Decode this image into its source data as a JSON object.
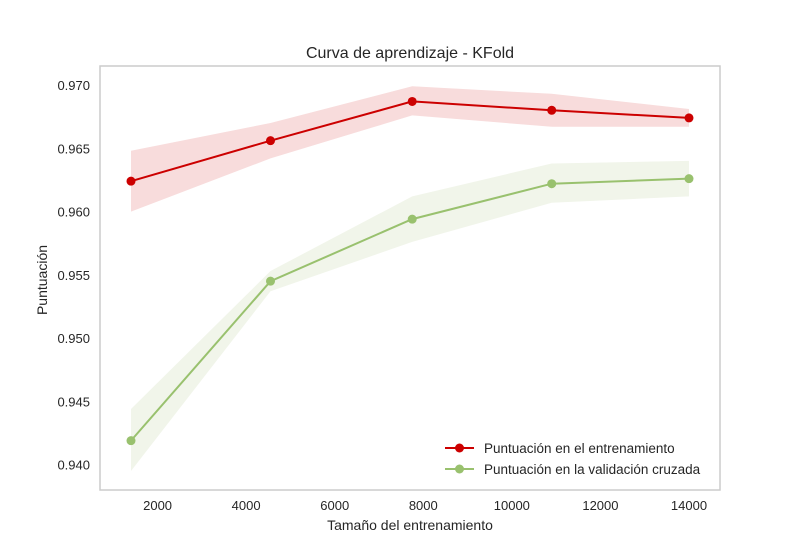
{
  "chart_data": {
    "type": "line",
    "title": "Curva de aprendizaje - KFold",
    "xlabel": "Tamaño del entrenamiento",
    "ylabel": "Puntuación",
    "xlim": [
      700,
      14700
    ],
    "ylim": [
      0.938,
      0.9715
    ],
    "xticks": [
      2000,
      4000,
      6000,
      8000,
      10000,
      12000,
      14000
    ],
    "yticks": [
      0.94,
      0.945,
      0.95,
      0.955,
      0.96,
      0.965,
      0.97
    ],
    "grid": false,
    "legend_position": "lower-right",
    "x": [
      1400,
      4550,
      7750,
      10900,
      14000
    ],
    "series": [
      {
        "name": "Puntuación en el entrenamiento",
        "color": "#cc0000",
        "band_color": "#f8dcdc",
        "values": [
          0.9624,
          0.9656,
          0.9687,
          0.968,
          0.9674
        ],
        "lower": [
          0.96,
          0.9642,
          0.9676,
          0.9667,
          0.9667
        ],
        "upper": [
          0.9648,
          0.967,
          0.9699,
          0.9693,
          0.9681
        ]
      },
      {
        "name": "Puntuación en la validación cruzada",
        "color": "#99c16e",
        "band_color": "#f1f5ea",
        "values": [
          0.9419,
          0.9545,
          0.9594,
          0.9622,
          0.9626
        ],
        "lower": [
          0.9395,
          0.9537,
          0.9576,
          0.9607,
          0.9612
        ],
        "upper": [
          0.9444,
          0.9553,
          0.9612,
          0.9638,
          0.964
        ]
      }
    ]
  }
}
